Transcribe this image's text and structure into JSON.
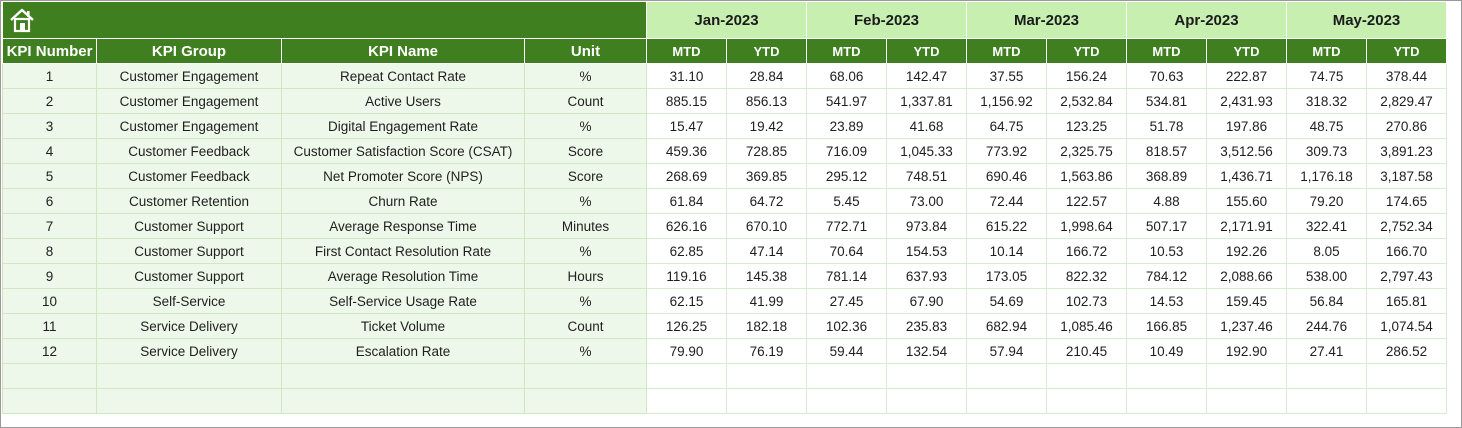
{
  "toolbar": {
    "home_icon": "home-icon"
  },
  "months": [
    "Jan-2023",
    "Feb-2023",
    "Mar-2023",
    "Apr-2023",
    "May-2023"
  ],
  "columns": {
    "kpi_number": "KPI Number",
    "kpi_group": "KPI Group",
    "kpi_name": "KPI Name",
    "unit": "Unit",
    "mtd": "MTD",
    "ytd": "YTD"
  },
  "rows": [
    {
      "num": "1",
      "group": "Customer Engagement",
      "name": "Repeat Contact Rate",
      "unit": "%",
      "values": [
        "31.10",
        "28.84",
        "68.06",
        "142.47",
        "37.55",
        "156.24",
        "70.63",
        "222.87",
        "74.75",
        "378.44"
      ]
    },
    {
      "num": "2",
      "group": "Customer Engagement",
      "name": "Active Users",
      "unit": "Count",
      "values": [
        "885.15",
        "856.13",
        "541.97",
        "1,337.81",
        "1,156.92",
        "2,532.84",
        "534.81",
        "2,431.93",
        "318.32",
        "2,829.47"
      ]
    },
    {
      "num": "3",
      "group": "Customer Engagement",
      "name": "Digital Engagement Rate",
      "unit": "%",
      "values": [
        "15.47",
        "19.42",
        "23.89",
        "41.68",
        "64.75",
        "123.25",
        "51.78",
        "197.86",
        "48.75",
        "270.86"
      ]
    },
    {
      "num": "4",
      "group": "Customer Feedback",
      "name": "Customer Satisfaction Score (CSAT)",
      "unit": "Score",
      "values": [
        "459.36",
        "728.85",
        "716.09",
        "1,045.33",
        "773.92",
        "2,325.75",
        "818.57",
        "3,512.56",
        "309.73",
        "3,891.23"
      ]
    },
    {
      "num": "5",
      "group": "Customer Feedback",
      "name": "Net Promoter Score (NPS)",
      "unit": "Score",
      "values": [
        "268.69",
        "369.85",
        "295.12",
        "748.51",
        "690.46",
        "1,563.86",
        "368.89",
        "1,436.71",
        "1,176.18",
        "3,187.58"
      ]
    },
    {
      "num": "6",
      "group": "Customer Retention",
      "name": "Churn Rate",
      "unit": "%",
      "values": [
        "61.84",
        "64.72",
        "5.45",
        "73.00",
        "72.44",
        "122.57",
        "4.88",
        "155.60",
        "79.20",
        "174.65"
      ]
    },
    {
      "num": "7",
      "group": "Customer Support",
      "name": "Average Response Time",
      "unit": "Minutes",
      "values": [
        "626.16",
        "670.10",
        "772.71",
        "973.84",
        "615.22",
        "1,998.64",
        "507.17",
        "2,171.91",
        "322.41",
        "2,752.34"
      ]
    },
    {
      "num": "8",
      "group": "Customer Support",
      "name": "First Contact Resolution Rate",
      "unit": "%",
      "values": [
        "62.85",
        "47.14",
        "70.64",
        "154.53",
        "10.14",
        "166.72",
        "10.53",
        "192.26",
        "8.05",
        "166.70"
      ]
    },
    {
      "num": "9",
      "group": "Customer Support",
      "name": "Average Resolution Time",
      "unit": "Hours",
      "values": [
        "119.16",
        "145.38",
        "781.14",
        "637.93",
        "173.05",
        "822.32",
        "784.12",
        "2,088.66",
        "538.00",
        "2,797.43"
      ]
    },
    {
      "num": "10",
      "group": "Self-Service",
      "name": "Self-Service Usage Rate",
      "unit": "%",
      "values": [
        "62.15",
        "41.99",
        "27.45",
        "67.90",
        "54.69",
        "102.73",
        "14.53",
        "159.45",
        "56.84",
        "165.81"
      ]
    },
    {
      "num": "11",
      "group": "Service Delivery",
      "name": "Ticket Volume",
      "unit": "Count",
      "values": [
        "126.25",
        "182.18",
        "102.36",
        "235.83",
        "682.94",
        "1,085.46",
        "166.85",
        "1,237.46",
        "244.76",
        "1,074.54"
      ]
    },
    {
      "num": "12",
      "group": "Service Delivery",
      "name": "Escalation Rate",
      "unit": "%",
      "values": [
        "79.90",
        "76.19",
        "59.44",
        "132.54",
        "57.94",
        "210.45",
        "10.49",
        "192.90",
        "27.41",
        "286.52"
      ]
    }
  ],
  "empty_rows": 2,
  "colors": {
    "header_green": "#3f7f1f",
    "month_green": "#c6efb0",
    "left_fill": "#eef8ea"
  }
}
